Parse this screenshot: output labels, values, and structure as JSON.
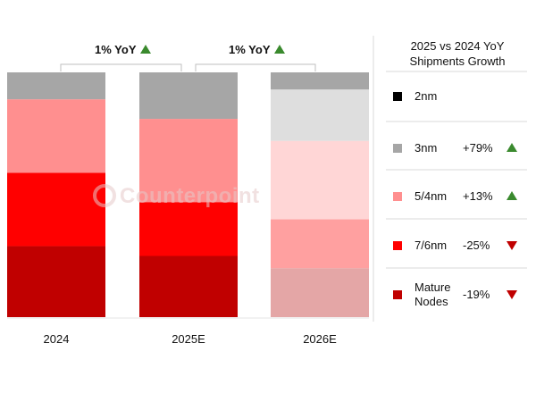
{
  "chart_data": {
    "type": "bar",
    "stacked": true,
    "categories": [
      "2024",
      "2025E",
      "2026E"
    ],
    "series": [
      {
        "name": "Mature Nodes",
        "values": [
          29,
          25,
          20
        ],
        "color": "#c00000"
      },
      {
        "name": "7/6nm",
        "values": [
          30,
          22,
          20
        ],
        "color": "#ff0000"
      },
      {
        "name": "5/4nm",
        "values": [
          30,
          34,
          32
        ],
        "color": "#ff8f8f"
      },
      {
        "name": "3nm",
        "values": [
          11,
          19,
          21
        ],
        "color": "#a6a6a6"
      },
      {
        "name": "2nm",
        "values": [
          0,
          0,
          7
        ],
        "color": "#000000"
      }
    ],
    "projected_category": "2026E",
    "projected_colors": {
      "Mature Nodes": "#e4a6a6",
      "7/6nm": "#ffa0a0",
      "5/4nm": "#ffd6d6",
      "3nm": "#dedede",
      "2nm": "#a6a6a6"
    },
    "ylim": [
      0,
      100
    ],
    "annotations": [
      {
        "text": "1% YoY",
        "from": "2024",
        "to": "2025E",
        "direction": "up"
      },
      {
        "text": "1% YoY",
        "from": "2025E",
        "to": "2026E",
        "direction": "up"
      }
    ],
    "legend": {
      "title_line1": "2025 vs 2024 YoY",
      "title_line2": "Shipments Growth",
      "items": [
        {
          "name": "2nm",
          "growth": "",
          "direction": "",
          "color": "#000000"
        },
        {
          "name": "3nm",
          "growth": "+79%",
          "direction": "up",
          "color": "#a6a6a6"
        },
        {
          "name": "5/4nm",
          "growth": "+13%",
          "direction": "up",
          "color": "#ff8f8f"
        },
        {
          "name": "7/6nm",
          "growth": "-25%",
          "direction": "down",
          "color": "#ff0000"
        },
        {
          "name": "Mature Nodes",
          "growth": "-19%",
          "direction": "down",
          "color": "#c00000"
        }
      ]
    },
    "watermark": "Counterpoint",
    "colors": {
      "up": "#3a8a2e",
      "down": "#c00000",
      "separator": "#d9d9d9"
    }
  }
}
